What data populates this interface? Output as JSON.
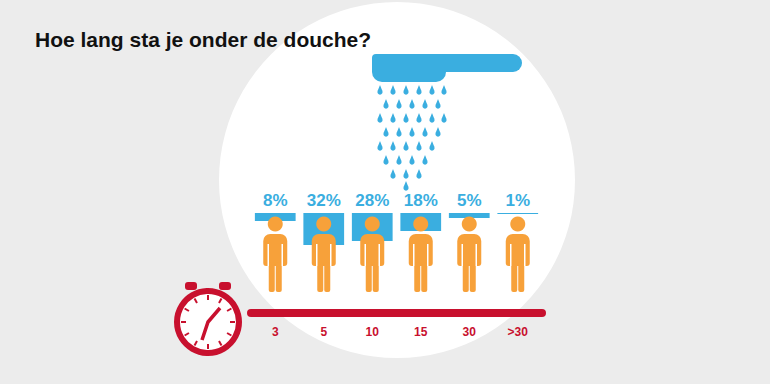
{
  "chart_data": {
    "type": "bar",
    "title": "Hoe lang sta je onder de douche?",
    "categories": [
      "3",
      "5",
      "10",
      "15",
      "30",
      ">30"
    ],
    "values": [
      8,
      32,
      28,
      18,
      5,
      1
    ],
    "value_labels": [
      "8%",
      "32%",
      "28%",
      "18%",
      "5%",
      "1%"
    ],
    "color": "#3aaee0",
    "ylim": [
      0,
      100
    ],
    "data_labels": true,
    "tick_labels": "x",
    "grid": false
  }
}
